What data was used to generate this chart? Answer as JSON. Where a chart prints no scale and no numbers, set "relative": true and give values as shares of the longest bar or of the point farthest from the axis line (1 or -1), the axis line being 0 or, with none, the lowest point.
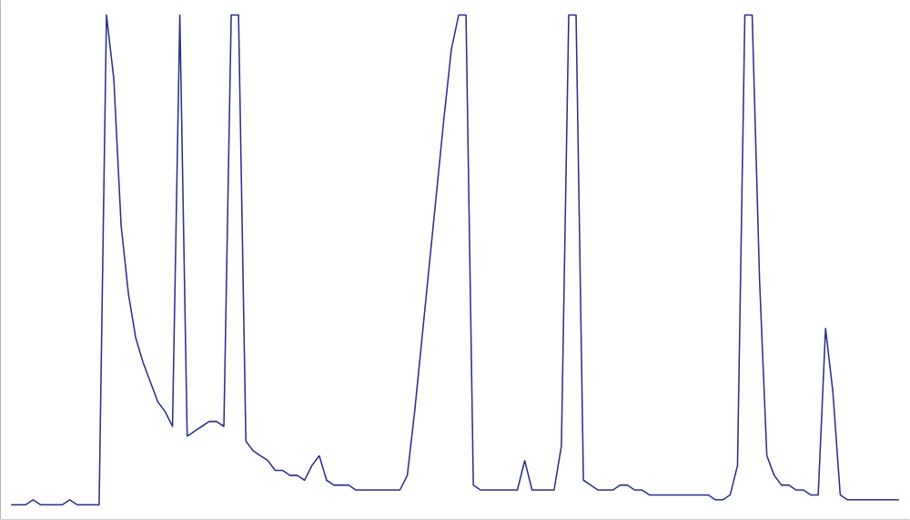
{
  "chart_data": {
    "type": "line",
    "relative": true,
    "color": "#2b2f8c",
    "categories": [
      null,
      null,
      null,
      null,
      null,
      null,
      null,
      null,
      null,
      null,
      null,
      null,
      null,
      null,
      null,
      null,
      null,
      null,
      null,
      null,
      null,
      null,
      null,
      null,
      null,
      null,
      null,
      null,
      null,
      null,
      null,
      null,
      null,
      null,
      null,
      null,
      null,
      null,
      null,
      null,
      null,
      null,
      null,
      null,
      null,
      null,
      null,
      null,
      null,
      null,
      null,
      null,
      null,
      null,
      null,
      null,
      null,
      null,
      null,
      null,
      null,
      null,
      null,
      null,
      null,
      null,
      null,
      null,
      null,
      null,
      null,
      null,
      null,
      null,
      null,
      null,
      null,
      null,
      null,
      null,
      null,
      null,
      null,
      null,
      null,
      null,
      null,
      null,
      null,
      null,
      null,
      null,
      null,
      null,
      null,
      null,
      null,
      null,
      null,
      null,
      null,
      null,
      null,
      null,
      null,
      null,
      null,
      null,
      null,
      null,
      null,
      null,
      null,
      null,
      null,
      null,
      null,
      null,
      null,
      null,
      null,
      null
    ],
    "values": [
      0,
      0,
      0,
      0.01,
      0,
      0,
      0,
      0,
      0.01,
      0,
      0,
      0,
      0,
      1,
      0.87,
      0.57,
      0.43,
      0.34,
      0.29,
      0.25,
      0.21,
      0.19,
      0.16,
      1,
      0.14,
      0.15,
      0.16,
      0.17,
      0.17,
      0.16,
      1,
      1,
      0.13,
      0.11,
      0.1,
      0.09,
      0.07,
      0.07,
      0.06,
      0.06,
      0.05,
      0.08,
      0.1,
      0.05,
      0.04,
      0.04,
      0.04,
      0.03,
      0.03,
      0.03,
      0.03,
      0.03,
      0.03,
      0.03,
      0.06,
      0.19,
      0.34,
      0.49,
      0.64,
      0.79,
      0.93,
      1,
      1,
      0.04,
      0.03,
      0.03,
      0.03,
      0.03,
      0.03,
      0.03,
      0.09,
      0.03,
      0.03,
      0.03,
      0.03,
      0.12,
      1,
      1,
      0.05,
      0.04,
      0.03,
      0.03,
      0.03,
      0.04,
      0.04,
      0.03,
      0.03,
      0.02,
      0.02,
      0.02,
      0.02,
      0.02,
      0.02,
      0.02,
      0.02,
      0.02,
      0.01,
      0.01,
      0.02,
      0.08,
      1,
      1,
      0.46,
      0.1,
      0.06,
      0.04,
      0.04,
      0.03,
      0.03,
      0.02,
      0.02,
      0.36,
      0.23,
      0.02,
      0.01,
      0.01,
      0.01,
      0.01,
      0.01,
      0.01,
      0.01,
      0.01
    ]
  }
}
